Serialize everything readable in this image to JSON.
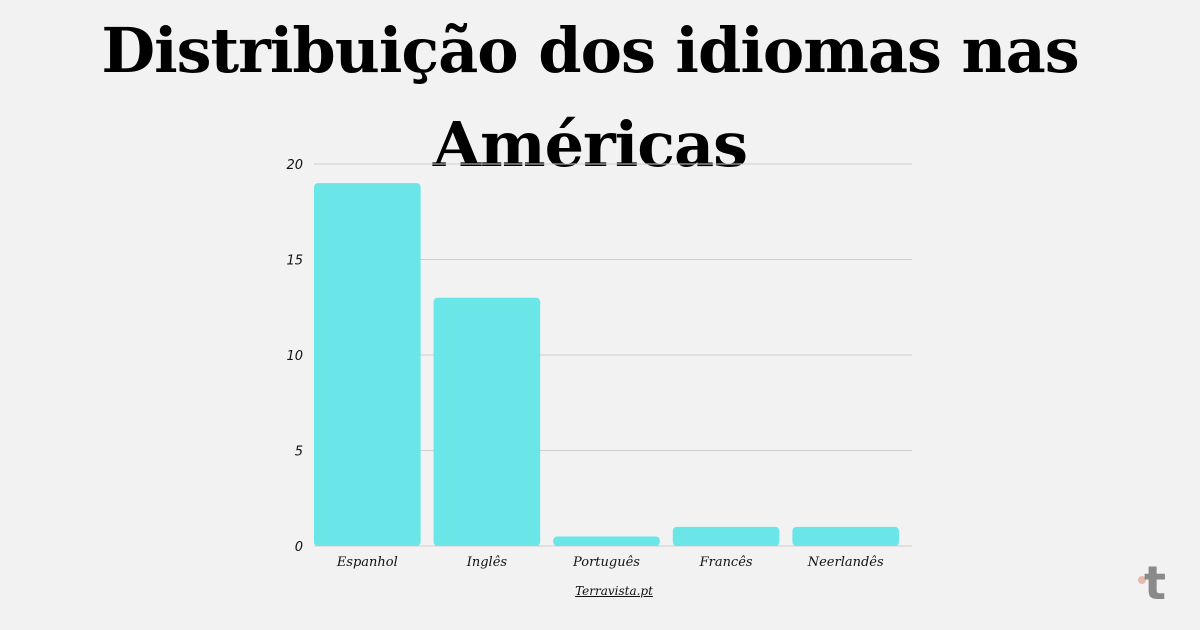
{
  "page": {
    "title": "Distribuição dos idiomas nas Américas",
    "source": "Terravista.pt",
    "logo_letter": "t"
  },
  "chart_data": {
    "type": "bar",
    "title": "Distribuição dos idiomas nas Américas",
    "categories": [
      "Espanhol",
      "Inglês",
      "Português",
      "Francês",
      "Neerlandês"
    ],
    "values": [
      19,
      13,
      0.5,
      1,
      1
    ],
    "yticks": [
      0,
      5,
      10,
      15,
      20
    ],
    "ylim": [
      0,
      20
    ],
    "xlabel": "",
    "ylabel": "",
    "grid": true,
    "legend": "none",
    "colors": {
      "bar": "#6ae5e8",
      "grid": "#cfcfcf",
      "background": "#f2f2f2"
    }
  }
}
